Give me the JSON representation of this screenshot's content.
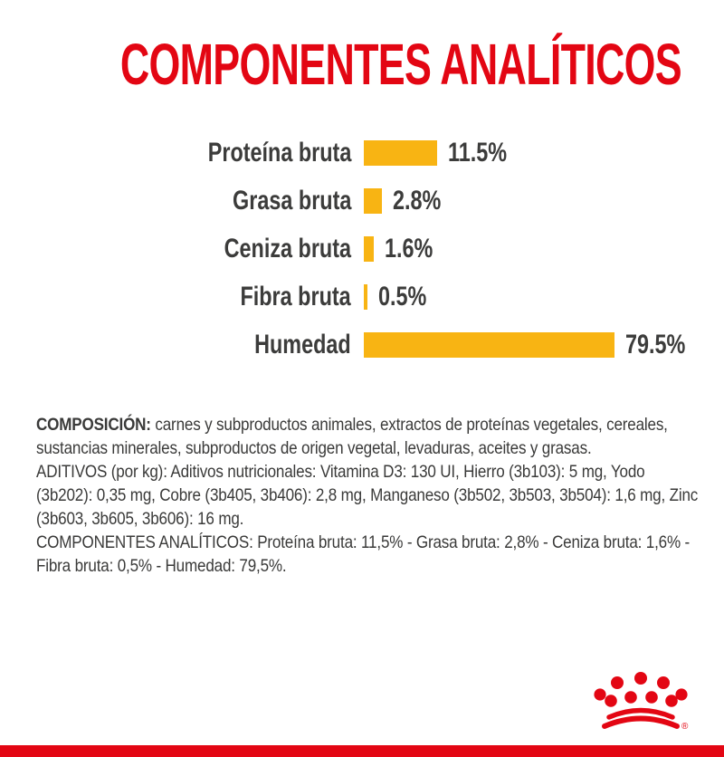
{
  "title": "COMPONENTES ANALÍTICOS",
  "colors": {
    "brand_red": "#E30613",
    "bar_yellow": "#F8B413",
    "text_dark": "#3C3C3B"
  },
  "chart_data": {
    "type": "bar",
    "orientation": "horizontal",
    "title": "COMPONENTES ANALÍTICOS",
    "categories": [
      "Proteína bruta",
      "Grasa bruta",
      "Ceniza bruta",
      "Fibra bruta",
      "Humedad"
    ],
    "values": [
      11.5,
      2.8,
      1.6,
      0.5,
      79.5
    ],
    "value_labels": [
      "11.5%",
      "2.8%",
      "1.6%",
      "0.5%",
      "79.5%"
    ],
    "unit": "%",
    "xlim": [
      0,
      100
    ],
    "grid": false,
    "bar_color": "#F8B413",
    "legend": "none"
  },
  "info": {
    "composition_label": "COMPOSICIÓN:",
    "composition_text": " carnes y subproductos animales, extractos de proteínas vegetales, cereales, sustancias minerales, subproductos de origen vegetal, levaduras, aceites y grasas.",
    "additives_text": "ADITIVOS (por kg): Aditivos nutricionales: Vitamina D3: 130 UI, Hierro (3b103): 5 mg, Yodo (3b202): 0,35 mg, Cobre (3b405, 3b406): 2,8 mg, Manganeso (3b502, 3b503, 3b504): 1,6 mg, Zinc (3b603, 3b605, 3b606): 16 mg.",
    "analytical_text": "COMPONENTES ANALÍTICOS: Proteína bruta: 11,5% - Grasa bruta: 2,8% - Ceniza bruta: 1,6% - Fibra bruta: 0,5% - Humedad: 79,5%."
  },
  "logo": {
    "name": "royal-canin-crown",
    "registered_mark": "®"
  }
}
